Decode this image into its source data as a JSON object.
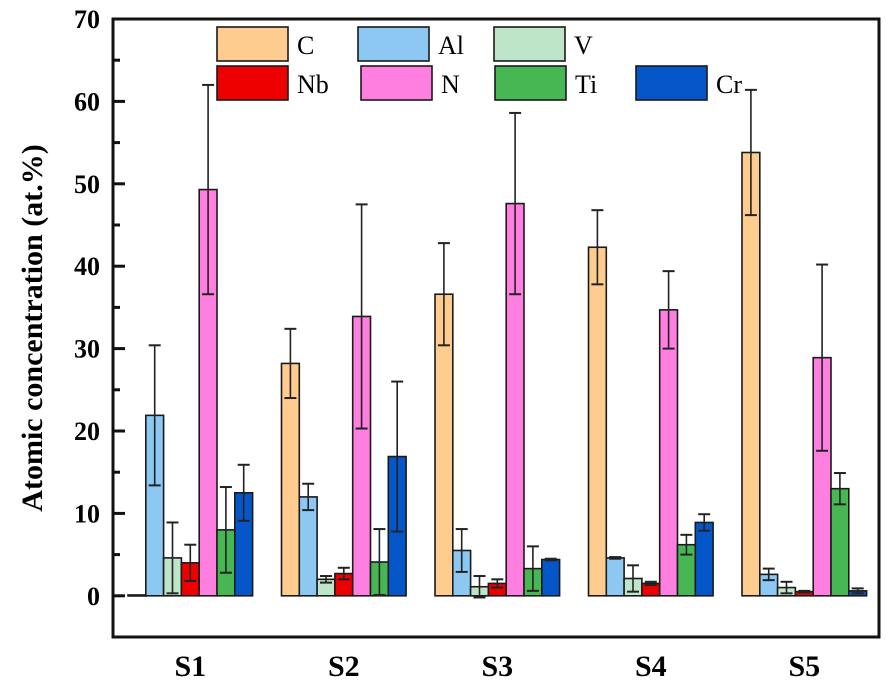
{
  "chart_data": {
    "type": "bar",
    "title": "",
    "xlabel": "",
    "ylabel": "Atomic concentration (at.%)",
    "ylim": [
      -5,
      70
    ],
    "yticks": [
      0,
      10,
      20,
      30,
      40,
      50,
      60,
      70
    ],
    "grid": false,
    "legend_position": "top",
    "categories": [
      "S1",
      "S2",
      "S3",
      "S4",
      "S5"
    ],
    "series": [
      {
        "name": "C",
        "color": "#FFCC8F",
        "values": [
          0.1,
          28.2,
          36.6,
          42.3,
          53.8
        ],
        "errors": [
          0.0,
          4.2,
          6.2,
          4.5,
          7.6
        ]
      },
      {
        "name": "Al",
        "color": "#8CC8F2",
        "values": [
          21.9,
          12.0,
          5.5,
          4.6,
          2.6
        ],
        "errors": [
          8.5,
          1.6,
          2.6,
          0.1,
          0.7
        ]
      },
      {
        "name": "V",
        "color": "#BFE5C9",
        "values": [
          4.6,
          2.0,
          1.1,
          2.1,
          1.0
        ],
        "errors": [
          4.3,
          0.4,
          1.3,
          1.6,
          0.7
        ]
      },
      {
        "name": "Nb",
        "color": "#EE0000",
        "values": [
          4.0,
          2.7,
          1.5,
          1.5,
          0.5
        ],
        "errors": [
          2.2,
          0.7,
          0.5,
          0.2,
          0.1
        ]
      },
      {
        "name": "N",
        "color": "#FF7FE1",
        "values": [
          49.3,
          33.9,
          47.6,
          34.7,
          28.9
        ],
        "errors": [
          12.7,
          13.6,
          11.0,
          4.7,
          11.3
        ]
      },
      {
        "name": "Ti",
        "color": "#46B753",
        "values": [
          8.0,
          4.1,
          3.3,
          6.2,
          13.0
        ],
        "errors": [
          5.2,
          4.0,
          2.7,
          1.2,
          1.9
        ]
      },
      {
        "name": "Cr",
        "color": "#0556C8",
        "values": [
          12.5,
          16.9,
          4.4,
          8.9,
          0.6
        ],
        "errors": [
          3.4,
          9.1,
          0.1,
          1.0,
          0.3
        ]
      }
    ]
  }
}
